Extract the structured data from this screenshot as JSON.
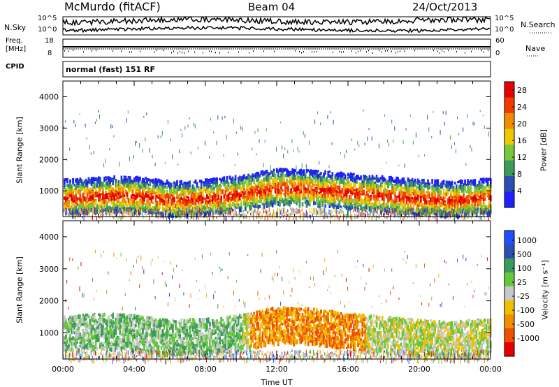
{
  "header": {
    "station": "McMurdo (fitACF)",
    "beam": "Beam 04",
    "date": "24/Oct/2013"
  },
  "params": {
    "nsky_label": "N.Sky",
    "nsearch_label": "N.Search",
    "freq_label_top": "Freq.",
    "freq_label_bottom": "[MHz]",
    "nave_label": "Nave",
    "cpid_label": "CPID",
    "cpid_value": "normal (fast) 151 RF",
    "noise_ticks": [
      "10^5",
      "10^0"
    ],
    "freq_ticks": [
      "18",
      "8"
    ],
    "nave_ticks": [
      "60",
      "0"
    ]
  },
  "colors": {
    "power": [
      "#1f1fff",
      "#2a4fb0",
      "#3c9a5a",
      "#78c83c",
      "#f0c800",
      "#f08c00",
      "#f03c00",
      "#e60000"
    ],
    "velocity": [
      "#e60000",
      "#f05000",
      "#f09000",
      "#f0c000",
      "#c8c8c8",
      "#64c83c",
      "#3c9a5a",
      "#2a4fb0",
      "#1f4fff"
    ]
  },
  "chart_data": [
    {
      "type": "heatmap",
      "quantity": "power",
      "xlabel": "",
      "ylabel": "Slant Range [km]",
      "xlim_hours": [
        0,
        24
      ],
      "ylim": [
        180,
        4500
      ],
      "y_ticks": [
        "1000",
        "2000",
        "3000",
        "4000"
      ],
      "colorbar": {
        "label": "Power [dB]",
        "ticks": [
          "4",
          "8",
          "12",
          "16",
          "20",
          "24",
          "28"
        ],
        "range": [
          0,
          30
        ]
      },
      "band_center_km": [
        {
          "x": 0,
          "y": 750
        },
        {
          "x": 2,
          "y": 850
        },
        {
          "x": 4,
          "y": 850
        },
        {
          "x": 6,
          "y": 700
        },
        {
          "x": 8,
          "y": 750
        },
        {
          "x": 10,
          "y": 900
        },
        {
          "x": 12,
          "y": 1100
        },
        {
          "x": 14,
          "y": 1050
        },
        {
          "x": 16,
          "y": 950
        },
        {
          "x": 18,
          "y": 850
        },
        {
          "x": 20,
          "y": 750
        },
        {
          "x": 22,
          "y": 700
        },
        {
          "x": 24,
          "y": 800
        }
      ]
    },
    {
      "type": "heatmap",
      "quantity": "velocity",
      "xlabel": "Time UT",
      "ylabel": "Slant Range [km]",
      "xlim_hours": [
        0,
        24
      ],
      "x_ticks": [
        "00:00",
        "04:00",
        "08:00",
        "12:00",
        "16:00",
        "20:00",
        "00:00"
      ],
      "ylim": [
        180,
        4500
      ],
      "y_ticks": [
        "1000",
        "2000",
        "3000",
        "4000"
      ],
      "colorbar": {
        "label": "Velocity [m s⁻¹]",
        "ticks": [
          "1000",
          "500",
          "100",
          "25",
          "-25",
          "-100",
          "-500",
          "-1000"
        ],
        "range": [
          -1000,
          1000
        ]
      },
      "band_center_km": [
        {
          "x": 0,
          "y": 900
        },
        {
          "x": 2,
          "y": 1000
        },
        {
          "x": 4,
          "y": 950
        },
        {
          "x": 6,
          "y": 800
        },
        {
          "x": 8,
          "y": 850
        },
        {
          "x": 10,
          "y": 950
        },
        {
          "x": 12,
          "y": 1200
        },
        {
          "x": 14,
          "y": 1150
        },
        {
          "x": 16,
          "y": 1000
        },
        {
          "x": 18,
          "y": 900
        },
        {
          "x": 20,
          "y": 800
        },
        {
          "x": 22,
          "y": 750
        },
        {
          "x": 24,
          "y": 850
        }
      ]
    }
  ]
}
